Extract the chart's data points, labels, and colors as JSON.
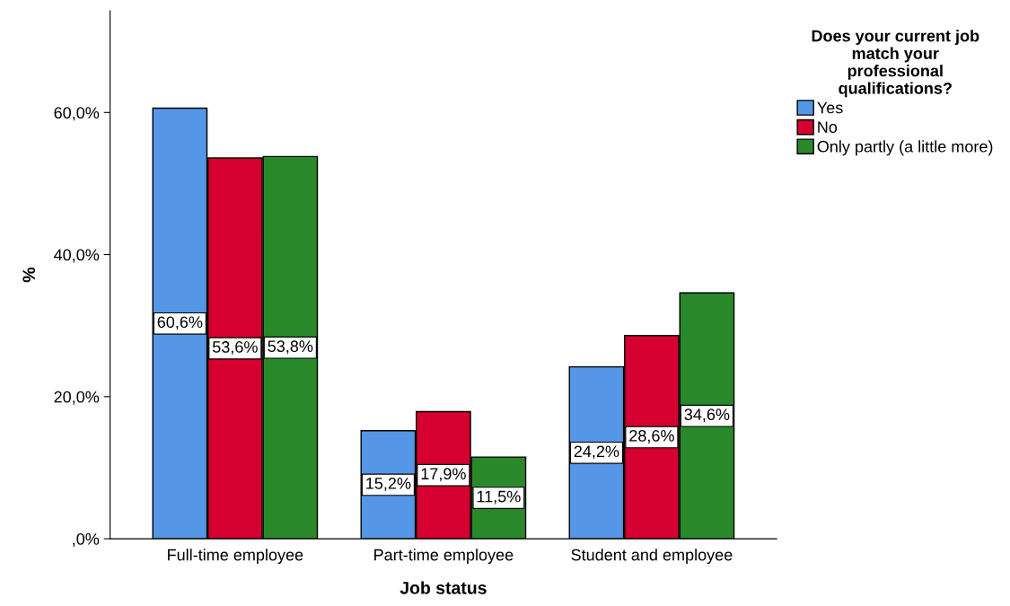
{
  "chart_data": {
    "type": "bar",
    "xlabel": "Job status",
    "ylabel": "%",
    "legend_title": "Does your current job\nmatch your\nprofessional\nqualifications?",
    "categories": [
      "Full-time employee",
      "Part-time employee",
      "Student and employee"
    ],
    "series": [
      {
        "name": "Yes",
        "color": "#5596e6",
        "values": [
          60.6,
          15.2,
          24.2
        ],
        "value_labels": [
          "60,6%",
          "15,2%",
          "24,2%"
        ]
      },
      {
        "name": "No",
        "color": "#d5002f",
        "values": [
          53.6,
          17.9,
          28.6
        ],
        "value_labels": [
          "53,6%",
          "17,9%",
          "28,6%"
        ]
      },
      {
        "name": "Only partly (a little more)",
        "color": "#29892a",
        "values": [
          53.8,
          11.5,
          34.6
        ],
        "value_labels": [
          "53,8%",
          "11,5%",
          "34,6%"
        ]
      }
    ],
    "ylim": [
      0,
      74.3
    ],
    "yticks": [
      {
        "value": 0,
        "label": ",0%"
      },
      {
        "value": 20,
        "label": "20,0%"
      },
      {
        "value": 40,
        "label": "40,0%"
      },
      {
        "value": 60,
        "label": "60,0%"
      }
    ],
    "grid": false,
    "legend": "top right"
  }
}
